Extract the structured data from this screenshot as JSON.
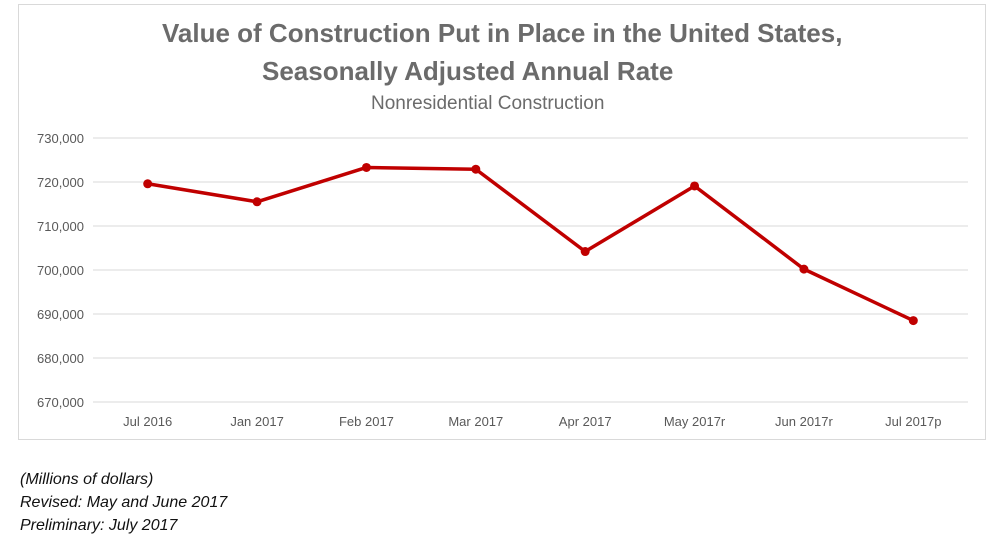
{
  "chart_data": {
    "type": "line",
    "title": "Value of Construction Put in Place in the United States,",
    "title_line2": "Seasonally Adjusted Annual Rate",
    "subtitle": "Nonresidential Construction",
    "categories": [
      "Jul 2016",
      "Jan 2017",
      "Feb 2017",
      "Mar 2017",
      "Apr 2017",
      "May 2017r",
      "Jun 2017r",
      "Jul 2017p"
    ],
    "series": [
      {
        "values": [
          719600,
          715500,
          723300,
          722900,
          704200,
          719100,
          700200,
          688500
        ],
        "color": "#c00000"
      }
    ],
    "ylim": [
      670000,
      730000
    ],
    "yticks": [
      670000,
      680000,
      690000,
      700000,
      710000,
      720000,
      730000
    ],
    "ytick_labels": [
      "670,000",
      "680,000",
      "690,000",
      "700,000",
      "710,000",
      "720,000",
      "730,000"
    ],
    "grid": true,
    "legend": "none"
  },
  "notes": [
    "(Millions of dollars)",
    "Revised: May and June 2017",
    "Preliminary: July 2017"
  ]
}
